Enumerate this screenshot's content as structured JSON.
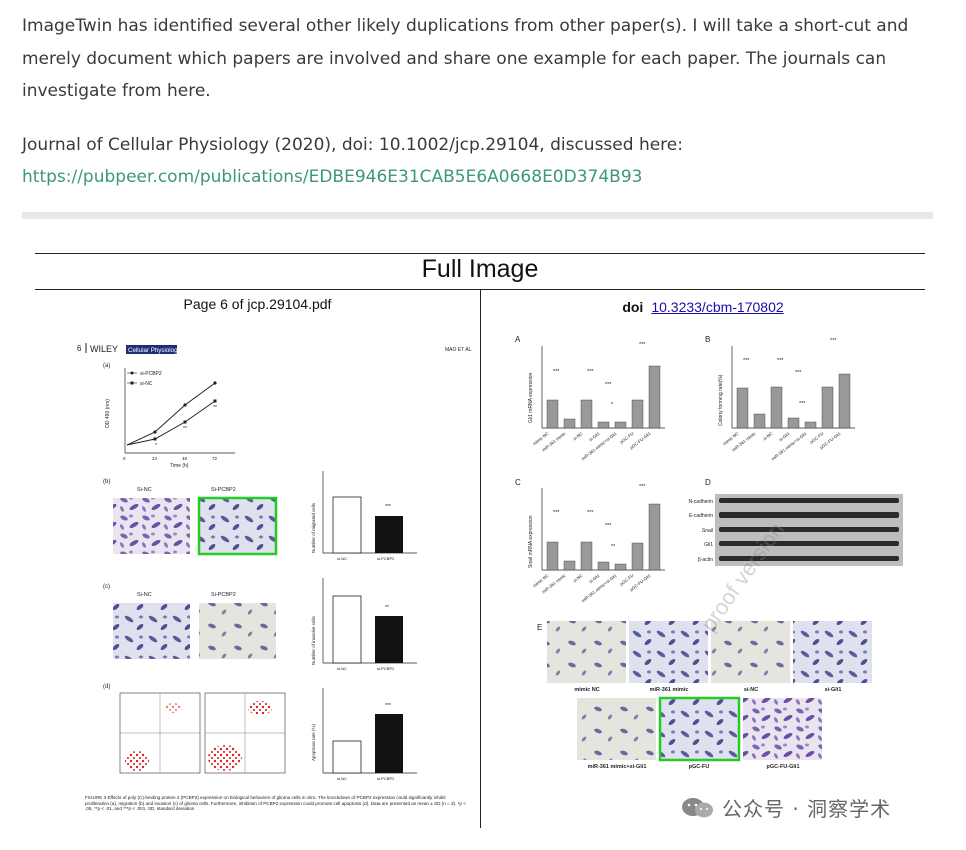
{
  "post": {
    "para1": "ImageTwin has identified several other likely duplications from other paper(s). I will take a short-cut and merely document which papers are involved and share one example for each paper. The journals can investigate from here.",
    "ref_line": "Journal of Cellular Physiology (2020), doi: 10.1002/jcp.29104, discussed here:",
    "ref_link": "https://pubpeer.com/publications/EDBE946E31CAB5E6A0668E0D374B93"
  },
  "panel": {
    "title": "Full Image",
    "left_header": "Page 6 of jcp.29104.pdf",
    "right_doi_label": "doi",
    "right_doi_link": "10.3233/cbm-170802"
  },
  "left_figure": {
    "journal": "WILEY",
    "journal_badge": "Cellular Physiology",
    "author": "MAO ET AL.",
    "legend_a": [
      "si-PCBP2",
      "si-NC"
    ],
    "panel_a_ylabel": "OD 490 (nm)",
    "panel_a_xlabel": "Time (h)",
    "panel_a_xticks": [
      "0",
      "24",
      "48",
      "72"
    ],
    "labels": [
      "(a)",
      "(b)",
      "(c)",
      "(d)"
    ],
    "b_titles": [
      "Si-NC",
      "Si-PCBP2"
    ],
    "c_titles": [
      "Si-NC",
      "Si-PCBP2"
    ],
    "b_ylabel": "Number of migrated cells",
    "c_ylabel": "Number of invasive cells",
    "d_ylabel": "Apoptosis rate (%)",
    "bar_xlabels": [
      "si-NC",
      "si-PCBP2"
    ],
    "sig": "***",
    "sig2": "**",
    "caption": "FIGURE 3  Effects of poly (C)-binding protein 2 (PCBP2) expression on biological behaviors of glioma cells in vitro. The knockdown of PCBP2 expression could significantly inhibit proliferation (a), migration (b) and invasion (c) of glioma cells. Furthermore, inhibition of PCBP2 expression could promote cell apoptosis (d). Data are presented as mean ± SD (n = 3). *p < .05, **p < .01, and ***p < .001. SD, standard deviation"
  },
  "right_figure": {
    "panel_letters": [
      "A",
      "B",
      "C",
      "D",
      "E"
    ],
    "a_ylabel": "Gli1 mRNA expression",
    "b_ylabel": "Colony forming rate(%)",
    "c_ylabel": "Snail mRNA expression",
    "groups": [
      "mimic NC",
      "miR-361 mimic",
      "si-NC",
      "si-Gli1",
      "miR-361 mimic+si-Gli1",
      "pGC-FU",
      "pGC-FU-Gli1"
    ],
    "wb_labels": [
      "N-cadherin",
      "E-cadherin",
      "Snail",
      "Gli1",
      "β-actin"
    ],
    "e_labels_row1": [
      "mimic NC",
      "miR-361 mimic",
      "si-NC",
      "si-Gli1"
    ],
    "e_labels_row2": [
      "miR-361 mimic+si-Gli1",
      "pGC-FU",
      "pGC-FU-Gli1"
    ],
    "overlay": "proof version"
  },
  "watermark": "公众号 · 洞察学术",
  "colors": {
    "link": "#3d9970",
    "highlight_box": "#22cc22",
    "doi_link": "#1a0dab"
  }
}
